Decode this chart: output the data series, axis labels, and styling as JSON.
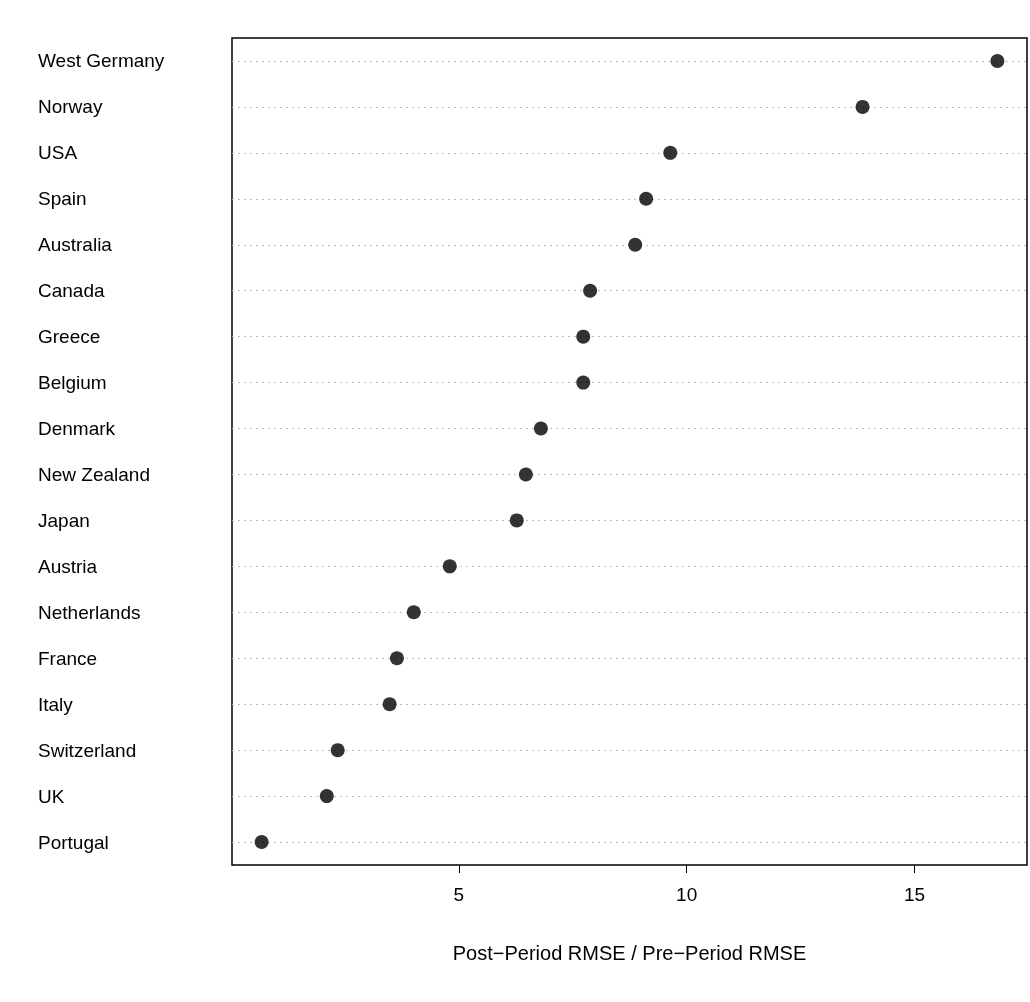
{
  "chart_data": {
    "type": "scatter",
    "orientation": "horizontal",
    "xlabel": "Post−Period RMSE / Pre−Period RMSE",
    "categories": [
      "West Germany",
      "Norway",
      "USA",
      "Spain",
      "Australia",
      "Canada",
      "Greece",
      "Belgium",
      "Denmark",
      "New Zealand",
      "Japan",
      "Austria",
      "Netherlands",
      "France",
      "Italy",
      "Switzerland",
      "UK",
      "Portugal"
    ],
    "values": [
      16.82,
      13.86,
      9.64,
      9.11,
      8.87,
      7.88,
      7.73,
      7.73,
      6.8,
      6.47,
      6.27,
      4.8,
      4.01,
      3.64,
      3.48,
      2.34,
      2.1,
      0.67
    ],
    "color": "#000000",
    "marker": "circle",
    "grid": "y",
    "xlim": [
      0.02,
      17.47
    ],
    "xticks": [
      5,
      10,
      15
    ]
  }
}
